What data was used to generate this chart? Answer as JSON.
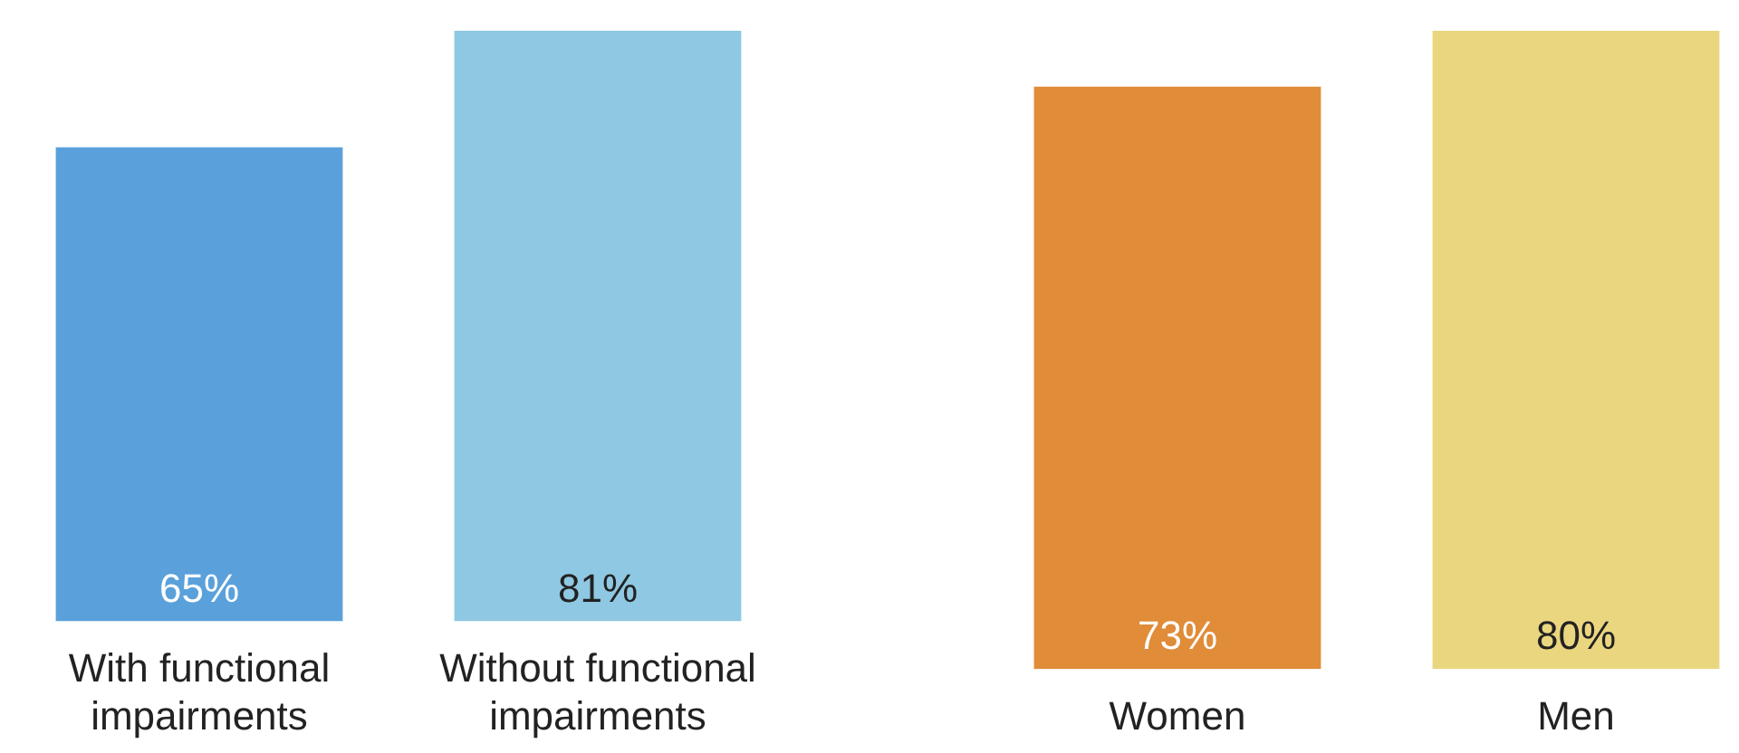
{
  "chart_data": [
    {
      "type": "bar",
      "categories": [
        "With functional impairments",
        "Without functional impairments"
      ],
      "values": [
        65,
        81
      ],
      "colors": [
        "#5aa1db",
        "#8fc8e2"
      ],
      "value_labels": [
        "65%",
        "81%"
      ]
    },
    {
      "type": "bar",
      "categories": [
        "Women",
        "Men"
      ],
      "values": [
        73,
        80
      ],
      "colors": [
        "#e08c38",
        "#ebd680"
      ],
      "value_labels": [
        "73%",
        "80%"
      ]
    }
  ]
}
